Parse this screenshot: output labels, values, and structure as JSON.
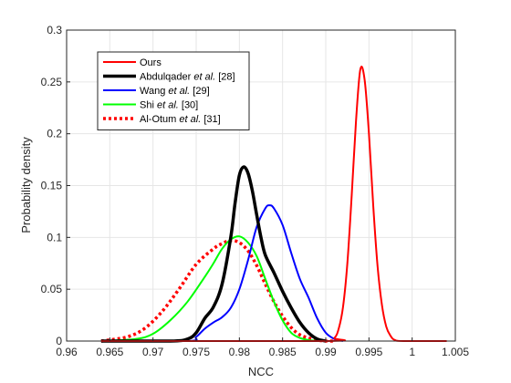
{
  "chart_data": {
    "type": "line",
    "xlabel": "NCC",
    "ylabel": "Probability density",
    "xlim": [
      0.96,
      1.005
    ],
    "ylim": [
      0,
      0.3
    ],
    "xticks": [
      0.96,
      0.965,
      0.97,
      0.975,
      0.98,
      0.985,
      0.99,
      0.995,
      1,
      1.005
    ],
    "xtick_labels": [
      "0.96",
      "0.965",
      "0.97",
      "0.975",
      "0.98",
      "0.985",
      "0.99",
      "0.995",
      "1",
      "1.005"
    ],
    "yticks": [
      0,
      0.05,
      0.1,
      0.15,
      0.2,
      0.25,
      0.3
    ],
    "ytick_labels": [
      "0",
      "0.05",
      "0.1",
      "0.15",
      "0.2",
      "0.25",
      "0.3"
    ],
    "grid": true,
    "legend_position": "top-left",
    "series": [
      {
        "name": "Ours",
        "legend": {
          "pre": "Ours",
          "italic": "",
          "post": ""
        },
        "color": "#ff0000",
        "style": "solid",
        "width": 2,
        "x": [
          0.964,
          0.99,
          0.991,
          0.9915,
          0.992,
          0.9925,
          0.993,
          0.9935,
          0.994,
          0.9945,
          0.995,
          0.9955,
          0.996,
          0.9965,
          0.997,
          0.9975,
          0.998,
          0.999,
          1.004
        ],
        "y": [
          0,
          0,
          0.003,
          0.012,
          0.033,
          0.075,
          0.14,
          0.212,
          0.262,
          0.252,
          0.2,
          0.13,
          0.072,
          0.035,
          0.014,
          0.005,
          0.001,
          0,
          0
        ]
      },
      {
        "name": "Abdulqader et al. [28]",
        "legend": {
          "pre": "Abdulqader ",
          "italic": "et al.",
          "post": " [28]"
        },
        "color": "#000000",
        "style": "solid",
        "width": 3.5,
        "x": [
          0.964,
          0.972,
          0.974,
          0.975,
          0.976,
          0.977,
          0.978,
          0.979,
          0.9795,
          0.98,
          0.9805,
          0.981,
          0.9815,
          0.982,
          0.9825,
          0.983,
          0.984,
          0.985,
          0.986,
          0.987,
          0.988,
          0.989,
          0.99
        ],
        "y": [
          0,
          0,
          0.002,
          0.008,
          0.022,
          0.033,
          0.055,
          0.1,
          0.133,
          0.16,
          0.168,
          0.162,
          0.145,
          0.122,
          0.1,
          0.083,
          0.066,
          0.048,
          0.032,
          0.018,
          0.008,
          0.002,
          0
        ]
      },
      {
        "name": "Wang et al. [29]",
        "legend": {
          "pre": "Wang ",
          "italic": "et al.",
          "post": " [29]"
        },
        "color": "#0000ff",
        "style": "solid",
        "width": 2,
        "x": [
          0.964,
          0.974,
          0.975,
          0.976,
          0.977,
          0.978,
          0.979,
          0.98,
          0.981,
          0.982,
          0.983,
          0.9835,
          0.984,
          0.985,
          0.986,
          0.987,
          0.988,
          0.989,
          0.99,
          0.991,
          0.992
        ],
        "y": [
          0,
          0,
          0.004,
          0.012,
          0.018,
          0.023,
          0.032,
          0.05,
          0.078,
          0.11,
          0.128,
          0.131,
          0.128,
          0.112,
          0.085,
          0.06,
          0.042,
          0.022,
          0.008,
          0.002,
          0
        ]
      },
      {
        "name": "Shi et al. [30]",
        "legend": {
          "pre": "Shi ",
          "italic": "et al.",
          "post": " [30]"
        },
        "color": "#00ff00",
        "style": "solid",
        "width": 2,
        "x": [
          0.964,
          0.968,
          0.97,
          0.972,
          0.974,
          0.976,
          0.977,
          0.978,
          0.979,
          0.98,
          0.981,
          0.982,
          0.983,
          0.984,
          0.985,
          0.986,
          0.987,
          0.988,
          0.989
        ],
        "y": [
          0,
          0.002,
          0.007,
          0.02,
          0.038,
          0.062,
          0.075,
          0.089,
          0.098,
          0.101,
          0.095,
          0.082,
          0.06,
          0.038,
          0.02,
          0.008,
          0.003,
          0.001,
          0
        ]
      },
      {
        "name": "Al-Otum et al. [31]",
        "legend": {
          "pre": "Al-Otum ",
          "italic": "et al.",
          "post": " [31]"
        },
        "color": "#ff0000",
        "style": "dotted",
        "width": 3.5,
        "x": [
          0.964,
          0.967,
          0.969,
          0.971,
          0.973,
          0.975,
          0.977,
          0.978,
          0.979,
          0.98,
          0.981,
          0.982,
          0.983,
          0.984,
          0.985,
          0.986,
          0.987,
          0.988,
          0.989,
          0.99,
          0.991
        ],
        "y": [
          0,
          0.004,
          0.012,
          0.028,
          0.05,
          0.074,
          0.089,
          0.094,
          0.097,
          0.095,
          0.087,
          0.073,
          0.055,
          0.038,
          0.024,
          0.013,
          0.006,
          0.003,
          0.001,
          0,
          0
        ]
      }
    ]
  }
}
